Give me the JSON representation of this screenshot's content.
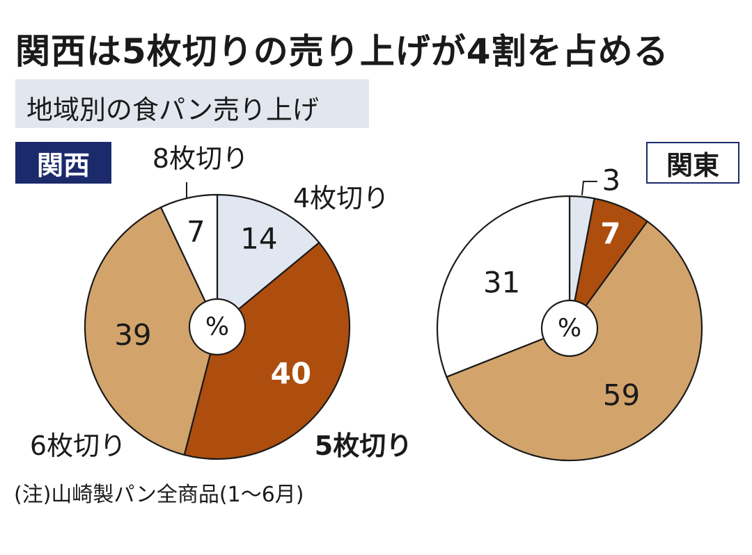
{
  "title": "関西は5枚切りの売り上げが4割を占める",
  "subtitle": "地域別の食パン売り上げ",
  "note": "(注)山崎製パン全商品(1〜6月)",
  "colors": {
    "slice_4": "#e1e7f1",
    "slice_5": "#ad4e0e",
    "slice_6": "#d2a46c",
    "slice_8": "#ffffff",
    "kansai_label_bg": "#1b2a6b",
    "outline": "#1a1a1a"
  },
  "chart_data": [
    {
      "type": "pie",
      "region": "関西",
      "center_label": "%",
      "slices": [
        {
          "key": "4",
          "name": "4枚切り",
          "value": 14
        },
        {
          "key": "5",
          "name": "5枚切り",
          "value": 40
        },
        {
          "key": "6",
          "name": "6枚切り",
          "value": 39
        },
        {
          "key": "8",
          "name": "8枚切り",
          "value": 7
        }
      ]
    },
    {
      "type": "pie",
      "region": "関東",
      "center_label": "%",
      "slices": [
        {
          "key": "4",
          "name": "",
          "value": 3
        },
        {
          "key": "5",
          "name": "",
          "value": 7
        },
        {
          "key": "6",
          "name": "",
          "value": 59
        },
        {
          "key": "8",
          "name": "",
          "value": 31
        }
      ]
    }
  ]
}
